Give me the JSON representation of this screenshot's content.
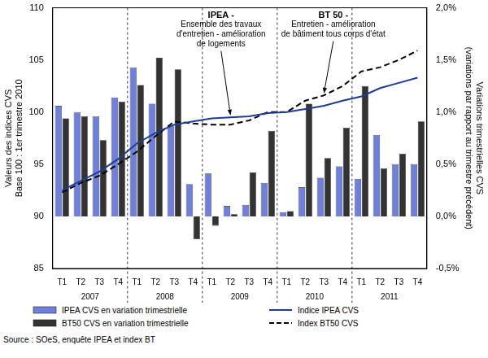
{
  "chart_data": {
    "type": "bar",
    "categories": [
      "T1",
      "T2",
      "T3",
      "T4",
      "T1",
      "T2",
      "T3",
      "T4",
      "T1",
      "T2",
      "T3",
      "T4",
      "T1",
      "T2",
      "T3",
      "T4",
      "T1",
      "T2",
      "T3",
      "T4"
    ],
    "x_groups": [
      "2007",
      "2008",
      "2009",
      "2010",
      "2011"
    ],
    "ylabel": [
      "Valeurs des indices CVS",
      "Base 100 : 1er trimestre 2010"
    ],
    "y2label": [
      "Variations trimestrielles CVS",
      "(variations par rapport au trimestre précédent)"
    ],
    "ylim": [
      85,
      110
    ],
    "yticks": [
      85,
      90,
      95,
      100,
      105,
      110
    ],
    "y2lim": [
      -0.5,
      2.0
    ],
    "y2ticks": [
      {
        "value": -0.5,
        "label": "-0,5%"
      },
      {
        "value": 0,
        "label": "0,0%"
      },
      {
        "value": 0.5,
        "label": "0,5%"
      },
      {
        "value": 1.0,
        "label": "1,0%"
      },
      {
        "value": 1.5,
        "label": "1,5%"
      },
      {
        "value": 2.0,
        "label": "2,0%"
      }
    ],
    "grid": false,
    "legend": "bottom",
    "series": [
      {
        "name": "IPEA CVS en variation trimestrielle",
        "type": "bar",
        "axis": "y2",
        "color": "#6f7fdc",
        "values": [
          1.06,
          1.0,
          0.96,
          1.14,
          1.43,
          1.08,
          0.87,
          0.31,
          0.41,
          0.1,
          0.11,
          0.32,
          0.04,
          0.28,
          0.37,
          0.48,
          0.36,
          0.78,
          0.5,
          0.5
        ]
      },
      {
        "name": "BT50 CVS en variation trimestrielle",
        "type": "bar",
        "axis": "y2",
        "color": "#333333",
        "values": [
          0.94,
          0.96,
          0.73,
          1.1,
          1.26,
          1.52,
          1.41,
          -0.22,
          -0.09,
          0.02,
          0.42,
          0.82,
          0.05,
          1.08,
          0.56,
          0.85,
          1.25,
          0.46,
          0.6,
          0.91
        ]
      },
      {
        "name": "Indice IPEA CVS",
        "type": "line",
        "axis": "y",
        "color": "#1f3a99",
        "line_style": "solid",
        "values": [
          92.5,
          93.4,
          94.3,
          95.5,
          97.0,
          98.0,
          98.8,
          99.1,
          99.4,
          99.5,
          99.6,
          99.9,
          100.0,
          100.3,
          100.6,
          101.1,
          101.5,
          102.3,
          102.8,
          103.3
        ]
      },
      {
        "name": "Index BT50 CVS",
        "type": "line",
        "axis": "y",
        "color": "#000000",
        "line_style": "dashed",
        "values": [
          92.3,
          93.2,
          93.9,
          95.0,
          96.2,
          97.7,
          99.1,
          98.9,
          98.8,
          98.8,
          99.2,
          100.0,
          100.0,
          101.1,
          101.6,
          102.5,
          103.9,
          104.3,
          105.0,
          105.9
        ]
      }
    ],
    "annotations": [
      {
        "title": "IPEA -",
        "text": [
          "Ensemble des travaux",
          "d'entretien - amélioration",
          "de logements"
        ],
        "series": "Indice IPEA CVS"
      },
      {
        "title": "BT 50 -",
        "text": [
          "Entretien - amélioration",
          "de bâtiment tous corps d'état"
        ],
        "series": "Index BT50 CVS"
      }
    ],
    "source": "Source : SOeS, enquête IPEA et index BT"
  }
}
